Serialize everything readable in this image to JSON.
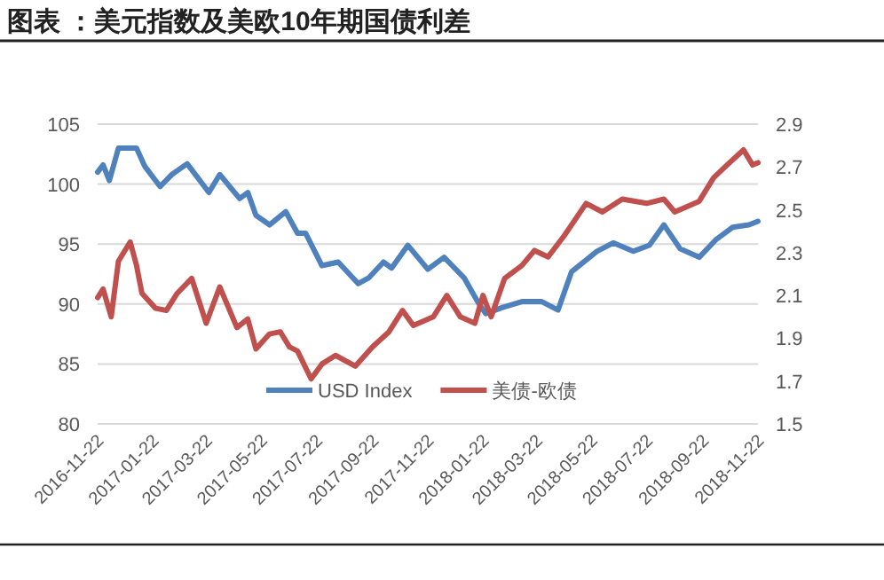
{
  "chart_data": {
    "type": "line",
    "title": "图表 ：美元指数及美欧10年期国债利差",
    "xlim": [
      "2016-11-22",
      "2018-11-22"
    ],
    "xticks": [
      "2016-11-22",
      "2017-01-22",
      "2017-03-22",
      "2017-05-22",
      "2017-07-22",
      "2017-09-22",
      "2017-11-22",
      "2018-01-22",
      "2018-03-22",
      "2018-05-22",
      "2018-07-22",
      "2018-09-22",
      "2018-11-22"
    ],
    "ylim": [
      80,
      105
    ],
    "yticks": [
      80,
      85,
      90,
      95,
      100,
      105
    ],
    "y2lim": [
      1.5,
      2.9
    ],
    "y2ticks": [
      1.5,
      1.7,
      1.9,
      2.1,
      2.3,
      2.5,
      2.7,
      2.9
    ],
    "grid": "y",
    "legend": "bottom",
    "line_style": "solid",
    "marker": "none",
    "series": [
      {
        "name": "USD Index",
        "color": "#4f81bd",
        "x": [
          "2016-11-22",
          "2016-11-28",
          "2016-12-05",
          "2016-12-15",
          "2017-01-04",
          "2017-01-13",
          "2017-01-30",
          "2017-02-12",
          "2017-03-01",
          "2017-03-25",
          "2017-04-06",
          "2017-04-28",
          "2017-05-07",
          "2017-05-16",
          "2017-05-31",
          "2017-06-18",
          "2017-07-01",
          "2017-07-10",
          "2017-07-28",
          "2017-08-15",
          "2017-09-06",
          "2017-09-18",
          "2017-10-04",
          "2017-10-13",
          "2017-10-31",
          "2017-11-22",
          "2017-12-10",
          "2018-01-01",
          "2018-01-16",
          "2018-01-25",
          "2018-02-12",
          "2018-03-06",
          "2018-03-28",
          "2018-04-15",
          "2018-04-30",
          "2018-05-28",
          "2018-06-15",
          "2018-07-07",
          "2018-07-25",
          "2018-08-10",
          "2018-08-28",
          "2018-09-18",
          "2018-10-07",
          "2018-10-25",
          "2018-11-12",
          "2018-11-22"
        ],
        "values": [
          101.0,
          101.6,
          100.3,
          103.0,
          103.0,
          101.5,
          99.8,
          100.8,
          101.7,
          99.3,
          100.8,
          98.8,
          99.3,
          97.4,
          96.6,
          97.7,
          95.9,
          95.9,
          93.2,
          93.5,
          91.7,
          92.2,
          93.5,
          93.0,
          94.9,
          92.9,
          93.9,
          92.2,
          90.2,
          89.2,
          89.7,
          90.2,
          90.2,
          89.5,
          92.7,
          94.4,
          95.1,
          94.4,
          94.9,
          96.6,
          94.6,
          93.9,
          95.4,
          96.4,
          96.6,
          96.9
        ]
      },
      {
        "name": "美债-欧债",
        "color": "#c0504d",
        "axis": "y2",
        "x": [
          "2016-11-22",
          "2016-11-28",
          "2016-12-07",
          "2016-12-15",
          "2016-12-28",
          "2017-01-04",
          "2017-01-10",
          "2017-01-25",
          "2017-02-06",
          "2017-02-18",
          "2017-03-06",
          "2017-03-22",
          "2017-04-06",
          "2017-04-25",
          "2017-05-07",
          "2017-05-16",
          "2017-05-31",
          "2017-06-12",
          "2017-06-22",
          "2017-07-01",
          "2017-07-16",
          "2017-07-28",
          "2017-08-12",
          "2017-09-03",
          "2017-09-22",
          "2017-10-10",
          "2017-10-25",
          "2017-11-06",
          "2017-11-28",
          "2017-12-13",
          "2017-12-28",
          "2018-01-13",
          "2018-01-22",
          "2018-01-31",
          "2018-02-15",
          "2018-03-06",
          "2018-03-20",
          "2018-04-04",
          "2018-04-22",
          "2018-05-16",
          "2018-06-03",
          "2018-06-25",
          "2018-07-22",
          "2018-08-10",
          "2018-08-22",
          "2018-09-18",
          "2018-10-04",
          "2018-10-19",
          "2018-11-06",
          "2018-11-16",
          "2018-11-22"
        ],
        "values": [
          2.09,
          2.13,
          2.0,
          2.26,
          2.35,
          2.24,
          2.11,
          2.04,
          2.03,
          2.11,
          2.18,
          1.97,
          2.14,
          1.95,
          1.99,
          1.85,
          1.92,
          1.93,
          1.86,
          1.84,
          1.71,
          1.78,
          1.82,
          1.77,
          1.86,
          1.93,
          2.03,
          1.96,
          2.0,
          2.1,
          2.0,
          1.97,
          2.1,
          2.0,
          2.18,
          2.24,
          2.31,
          2.28,
          2.38,
          2.53,
          2.49,
          2.55,
          2.53,
          2.55,
          2.49,
          2.54,
          2.65,
          2.71,
          2.78,
          2.71,
          2.72
        ]
      }
    ]
  }
}
